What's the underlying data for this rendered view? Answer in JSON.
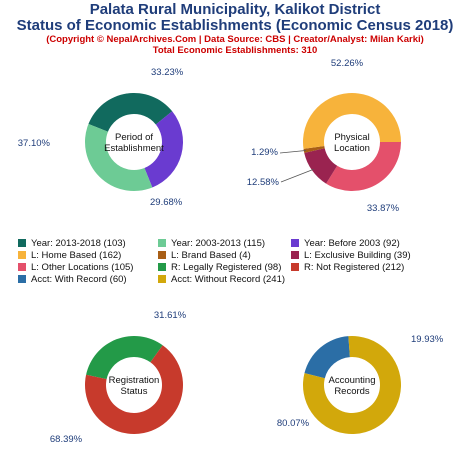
{
  "header": {
    "title_line1": "Palata Rural Municipality, Kalikot District",
    "title_line2": "Status of Economic Establishments (Economic Census 2018)",
    "copyright": "(Copyright © NepalArchives.Com | Data Source: CBS | Creator/Analyst: Milan Karki)",
    "total": "Total Economic Establishments: 310"
  },
  "legend": [
    {
      "label": "Year: 2013-2018 (103)",
      "color": "#116a5e"
    },
    {
      "label": "Year: 2003-2013 (115)",
      "color": "#6dcb95"
    },
    {
      "label": "Year: Before 2003 (92)",
      "color": "#6a3bd0"
    },
    {
      "label": "L: Home Based (162)",
      "color": "#f7b33b"
    },
    {
      "label": "L: Brand Based (4)",
      "color": "#a85e16"
    },
    {
      "label": "L: Exclusive Building (39)",
      "color": "#9a2350"
    },
    {
      "label": "L: Other Locations (105)",
      "color": "#e4506b"
    },
    {
      "label": "R: Legally Registered (98)",
      "color": "#239a48"
    },
    {
      "label": "R: Not Registered (212)",
      "color": "#c73a2c"
    },
    {
      "label": "Acct: With Record (60)",
      "color": "#2b6ea6"
    },
    {
      "label": "Acct: Without Record (241)",
      "color": "#d2a80b"
    }
  ],
  "chart_data": [
    {
      "type": "pie",
      "title": "Period of\nEstablishment",
      "categories": [
        "Year: 2013-2018",
        "Year: Before 2003",
        "Year: 2003-2013"
      ],
      "values": [
        103,
        92,
        115
      ],
      "colors": [
        "#116a5e",
        "#6a3bd0",
        "#6dcb95"
      ],
      "labels": [
        "33.23%",
        "29.68%",
        "37.10%"
      ]
    },
    {
      "type": "pie",
      "title": "Physical\nLocation",
      "categories": [
        "L: Other Locations",
        "L: Exclusive Building",
        "L: Brand Based",
        "L: Home Based"
      ],
      "values": [
        105,
        39,
        4,
        162
      ],
      "colors": [
        "#e4506b",
        "#9a2350",
        "#a85e16",
        "#f7b33b"
      ],
      "labels": [
        "33.87%",
        "12.58%",
        "1.29%",
        "52.26%"
      ]
    },
    {
      "type": "pie",
      "title": "Registration\nStatus",
      "categories": [
        "R: Legally Registered",
        "R: Not Registered"
      ],
      "values": [
        98,
        212
      ],
      "colors": [
        "#239a48",
        "#c73a2c"
      ],
      "labels": [
        "31.61%",
        "68.39%"
      ]
    },
    {
      "type": "pie",
      "title": "Accounting\nRecords",
      "categories": [
        "Acct: With Record",
        "Acct: Without Record"
      ],
      "values": [
        60,
        241
      ],
      "colors": [
        "#2b6ea6",
        "#d2a80b"
      ],
      "labels": [
        "19.93%",
        "80.07%"
      ]
    }
  ]
}
